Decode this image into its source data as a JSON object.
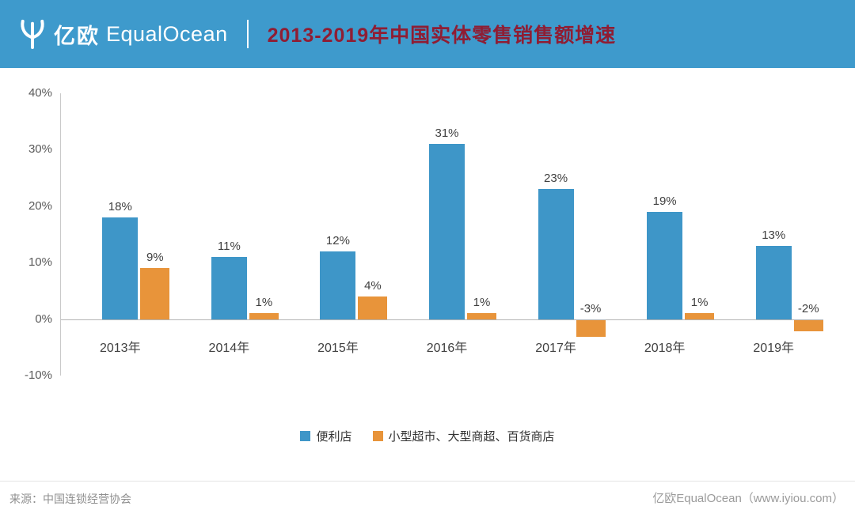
{
  "header": {
    "logo_cn": "亿欧",
    "logo_en": "EqualOcean",
    "title": "2013-2019年中国实体零售销售额增速"
  },
  "theme": {
    "banner_bg": "#3E9ACC",
    "title_color": "#8F1D33"
  },
  "chart_data": {
    "type": "bar",
    "title": "2013-2019年中国实体零售销售额增速",
    "categories": [
      "2013年",
      "2014年",
      "2015年",
      "2016年",
      "2017年",
      "2018年",
      "2019年"
    ],
    "series": [
      {
        "name": "便利店",
        "color": "#3E96C8",
        "values": [
          18,
          11,
          12,
          31,
          23,
          19,
          13
        ]
      },
      {
        "name": "小型超市、大型商超、百货商店",
        "color": "#E8943A",
        "values": [
          9,
          1,
          4,
          1,
          -3,
          1,
          -2
        ]
      }
    ],
    "ylim": [
      -10,
      40
    ],
    "yticks": [
      40,
      30,
      20,
      10,
      0,
      -10
    ],
    "tick_suffix": "%",
    "data_label_suffix": "%",
    "grid": false,
    "legend_position": "bottom"
  },
  "footer": {
    "source": "来源：中国连锁经营协会",
    "credit": "亿欧EqualOcean（www.iyiou.com）"
  }
}
